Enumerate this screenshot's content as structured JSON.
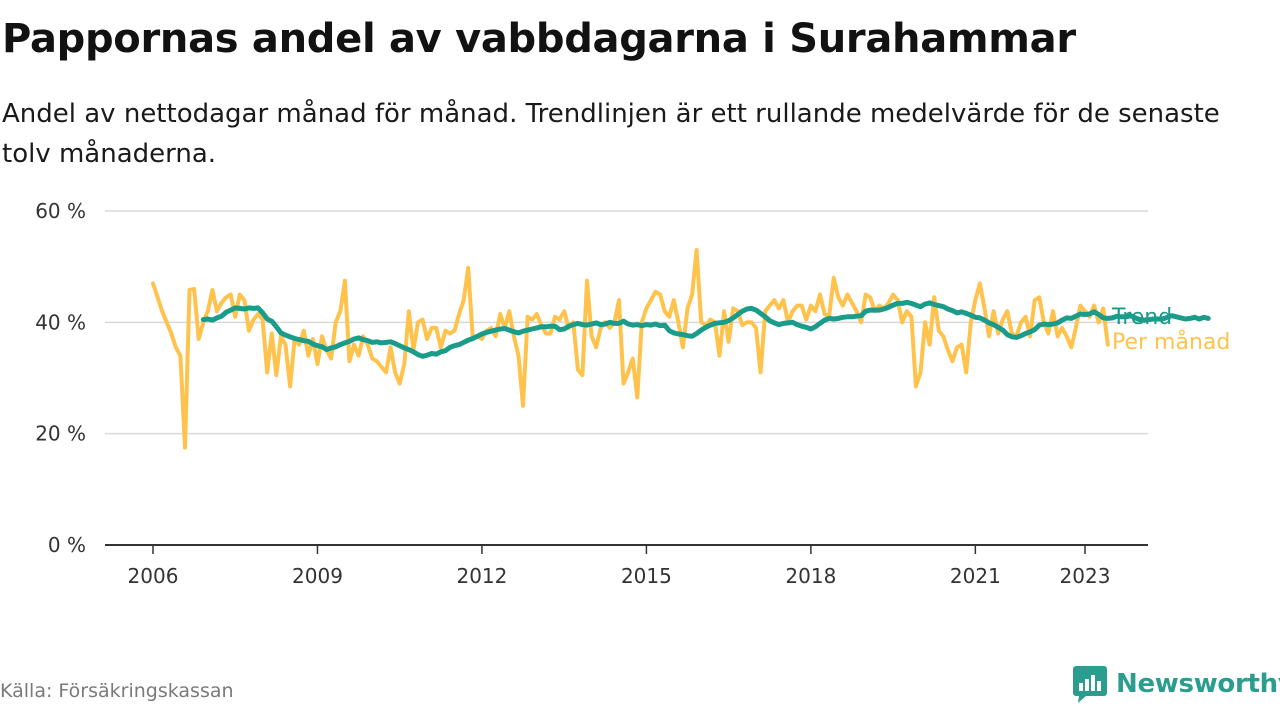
{
  "header": {
    "title": "Pappornas andel av vabbdagarna i Surahammar",
    "subtitle": "Andel av nettodagar månad för månad. Trendlinjen är ett rullande medelvärde för de senaste tolv månaderna."
  },
  "footer": {
    "source": "Källa: Försäkringskassan",
    "brand": "Newsworthy"
  },
  "colors": {
    "trend": "#1b9c8a",
    "monthly": "#ffc34d",
    "grid": "#d9d9d9",
    "axis": "#333333",
    "brand": "#2a9d8f"
  },
  "chart_data": {
    "type": "line",
    "title": "Pappornas andel av vabbdagarna i Surahammar",
    "xlabel": "",
    "ylabel": "",
    "x_unit": "year",
    "xlim": [
      2005.0,
      2024.1
    ],
    "ylim": [
      0,
      60
    ],
    "y_ticks": [
      0,
      20,
      40,
      60
    ],
    "y_tick_labels": [
      "0 %",
      "20 %",
      "40 %",
      "60 %"
    ],
    "x_ticks": [
      2006,
      2009,
      2012,
      2015,
      2018,
      2021,
      2023
    ],
    "x_tick_labels": [
      "2006",
      "2009",
      "2012",
      "2015",
      "2018",
      "2021",
      "2023"
    ],
    "grid": true,
    "legend": "end-of-line labels",
    "series": [
      {
        "name": "Trend",
        "color": "#1b9c8a",
        "x_start": 2006.917,
        "x_step": 0.08333,
        "values": [
          40.5,
          40.6,
          40.4,
          40.8,
          41.1,
          41.8,
          42.2,
          42.6,
          42.5,
          42.4,
          42.6,
          42.5,
          42.6,
          41.7,
          40.6,
          40.2,
          39.2,
          38.1,
          37.7,
          37.4,
          37.1,
          36.9,
          36.7,
          36.6,
          36.1,
          35.8,
          35.6,
          35.1,
          35.4,
          35.6,
          36.0,
          36.3,
          36.6,
          37.0,
          37.2,
          36.9,
          36.7,
          36.4,
          36.5,
          36.3,
          36.4,
          36.5,
          36.2,
          35.8,
          35.4,
          35.1,
          34.7,
          34.2,
          33.9,
          34.1,
          34.4,
          34.3,
          34.7,
          34.9,
          35.5,
          35.8,
          36.0,
          36.4,
          36.8,
          37.1,
          37.5,
          37.9,
          38.2,
          38.4,
          38.6,
          38.8,
          38.9,
          38.6,
          38.3,
          38.1,
          38.4,
          38.6,
          38.8,
          39.0,
          39.2,
          39.2,
          39.3,
          39.3,
          38.7,
          38.8,
          39.3,
          39.6,
          39.8,
          39.6,
          39.5,
          39.7,
          39.9,
          39.6,
          39.7,
          40.0,
          39.8,
          39.8,
          40.2,
          39.7,
          39.5,
          39.6,
          39.4,
          39.6,
          39.5,
          39.7,
          39.4,
          39.5,
          38.5,
          38.1,
          37.9,
          37.8,
          37.6,
          37.5,
          38.0,
          38.6,
          39.1,
          39.5,
          39.8,
          39.9,
          40.0,
          40.3,
          40.8,
          41.4,
          42.0,
          42.4,
          42.5,
          42.2,
          41.6,
          41.0,
          40.3,
          39.9,
          39.6,
          39.8,
          39.9,
          40.0,
          39.6,
          39.3,
          39.1,
          38.8,
          39.2,
          39.8,
          40.4,
          40.7,
          40.6,
          40.7,
          40.9,
          41.0,
          41.0,
          41.1,
          41.2,
          42.0,
          42.2,
          42.2,
          42.2,
          42.4,
          42.7,
          43.1,
          43.4,
          43.4,
          43.6,
          43.4,
          43.1,
          42.8,
          43.3,
          43.5,
          43.2,
          43.0,
          42.8,
          42.4,
          42.1,
          41.7,
          41.9,
          41.6,
          41.3,
          40.9,
          40.8,
          40.4,
          39.9,
          39.6,
          39.1,
          38.6,
          37.8,
          37.4,
          37.3,
          37.6,
          38.0,
          38.3,
          38.7,
          39.5,
          39.7,
          39.6,
          39.7,
          39.9,
          40.4,
          40.8,
          40.7,
          41.1,
          41.5,
          41.4,
          41.5,
          41.9,
          41.4,
          40.8,
          40.7,
          40.8,
          41.1,
          41.0,
          41.0,
          41.2,
          40.8,
          40.5,
          40.4,
          40.5,
          40.6,
          40.6,
          40.6,
          40.9,
          41.2,
          41.0,
          40.8,
          40.6,
          40.7,
          40.9,
          40.6,
          40.9,
          40.7
        ]
      },
      {
        "name": "Per månad",
        "color": "#ffc34d",
        "x_start": 2006.0,
        "x_step": 0.08333,
        "values": [
          47.0,
          44.5,
          42.0,
          40.0,
          38.0,
          35.5,
          34.0,
          17.5,
          45.8,
          46.0,
          37.0,
          40.0,
          42.0,
          45.8,
          42.0,
          43.5,
          44.5,
          45.0,
          41.0,
          45.0,
          44.0,
          38.5,
          40.5,
          41.5,
          40.5,
          31.0,
          38.0,
          30.5,
          37.5,
          36.0,
          28.5,
          37.0,
          36.0,
          38.5,
          34.0,
          37.0,
          32.5,
          37.5,
          35.0,
          33.5,
          40.0,
          42.0,
          47.5,
          33.0,
          36.0,
          34.0,
          37.5,
          36.0,
          33.5,
          33.0,
          32.0,
          31.0,
          35.5,
          31.0,
          29.0,
          32.5,
          42.0,
          35.0,
          40.0,
          40.5,
          37.0,
          39.0,
          39.0,
          35.5,
          38.5,
          38.0,
          38.5,
          41.5,
          44.0,
          49.8,
          37.0,
          37.5,
          37.0,
          38.5,
          39.0,
          37.5,
          41.5,
          39.0,
          42.0,
          37.5,
          34.0,
          25.0,
          41.0,
          40.5,
          41.5,
          39.5,
          38.0,
          38.0,
          41.0,
          40.5,
          42.0,
          39.0,
          40.0,
          31.5,
          30.5,
          47.5,
          37.5,
          35.5,
          39.0,
          40.0,
          39.0,
          40.0,
          44.0,
          29.0,
          31.0,
          33.5,
          26.5,
          40.0,
          42.5,
          44.0,
          45.5,
          45.0,
          42.0,
          41.0,
          44.0,
          40.0,
          35.5,
          42.5,
          45.0,
          53.0,
          40.0,
          39.5,
          40.5,
          40.0,
          34.0,
          42.0,
          36.5,
          42.5,
          42.0,
          39.5,
          40.0,
          40.0,
          39.0,
          31.0,
          42.0,
          43.0,
          44.0,
          42.5,
          44.0,
          40.0,
          42.0,
          43.0,
          43.0,
          40.5,
          43.0,
          42.0,
          45.0,
          41.5,
          41.0,
          48.0,
          44.5,
          43.0,
          45.0,
          43.5,
          42.0,
          40.0,
          45.0,
          44.5,
          42.0,
          43.0,
          42.5,
          43.5,
          45.0,
          44.0,
          40.0,
          42.0,
          41.0,
          28.5,
          31.0,
          40.0,
          36.0,
          44.5,
          38.5,
          37.5,
          35.0,
          33.0,
          35.5,
          36.0,
          31.0,
          40.0,
          44.0,
          47.0,
          42.5,
          37.5,
          42.0,
          38.0,
          40.5,
          42.0,
          38.0,
          37.5,
          40.0,
          41.0,
          37.5,
          44.0,
          44.5,
          40.0,
          38.0,
          42.0,
          37.5,
          39.0,
          37.5,
          35.5,
          39.0,
          43.0,
          42.0,
          41.0,
          43.0,
          40.0,
          42.5,
          36.0
        ]
      }
    ]
  }
}
